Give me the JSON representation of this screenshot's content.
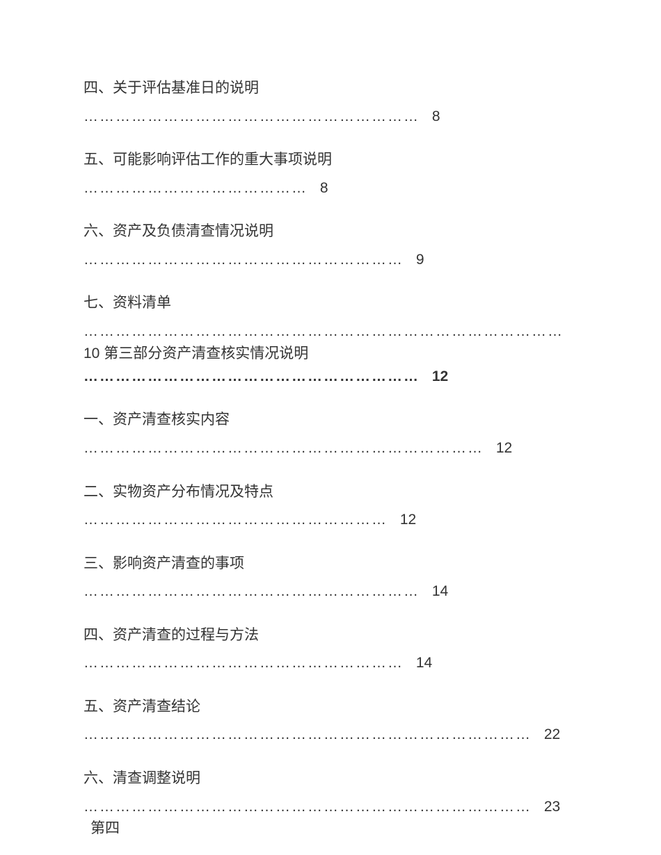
{
  "entries": [
    {
      "title": "四、关于评估基准日的说明",
      "leader": "………………………………………………………",
      "page": "8",
      "bold": false
    },
    {
      "title": "五、可能影响评估工作的重大事项说明",
      "leader": "……………………………………",
      "page": "8",
      "bold": false
    },
    {
      "title": "六、资产及负债清查情况说明",
      "leader": "……………………………………………………",
      "page": "9",
      "bold": false
    },
    {
      "title": "七、资料清单",
      "leader": "………………………………………………………………………………",
      "page": "",
      "continuation_before": "10 第三部分资产清查核实情况说明",
      "leader2": "………………………………………………………",
      "page2": "12",
      "bold": false,
      "bold2": true
    },
    {
      "title": "一、资产清查核实内容",
      "leader": "…………………………………………………………………",
      "page": "12",
      "bold": false
    },
    {
      "title": "二、实物资产分布情况及特点",
      "leader": "…………………………………………………",
      "page": "12",
      "bold": false
    },
    {
      "title": "三、影响资产清查的事项",
      "leader": "………………………………………………………",
      "page": "14",
      "bold": false
    },
    {
      "title": "四、资产清查的过程与方法",
      "leader": "……………………………………………………",
      "page": "14",
      "bold": false
    },
    {
      "title": "五、资产清查结论",
      "leader": "…………………………………………………………………………",
      "page": "22",
      "bold": false
    },
    {
      "title": "六、清查调整说明",
      "leader": "…………………………………………………………………………",
      "page": "23",
      "bold": false,
      "continuation_after": "第四"
    }
  ]
}
